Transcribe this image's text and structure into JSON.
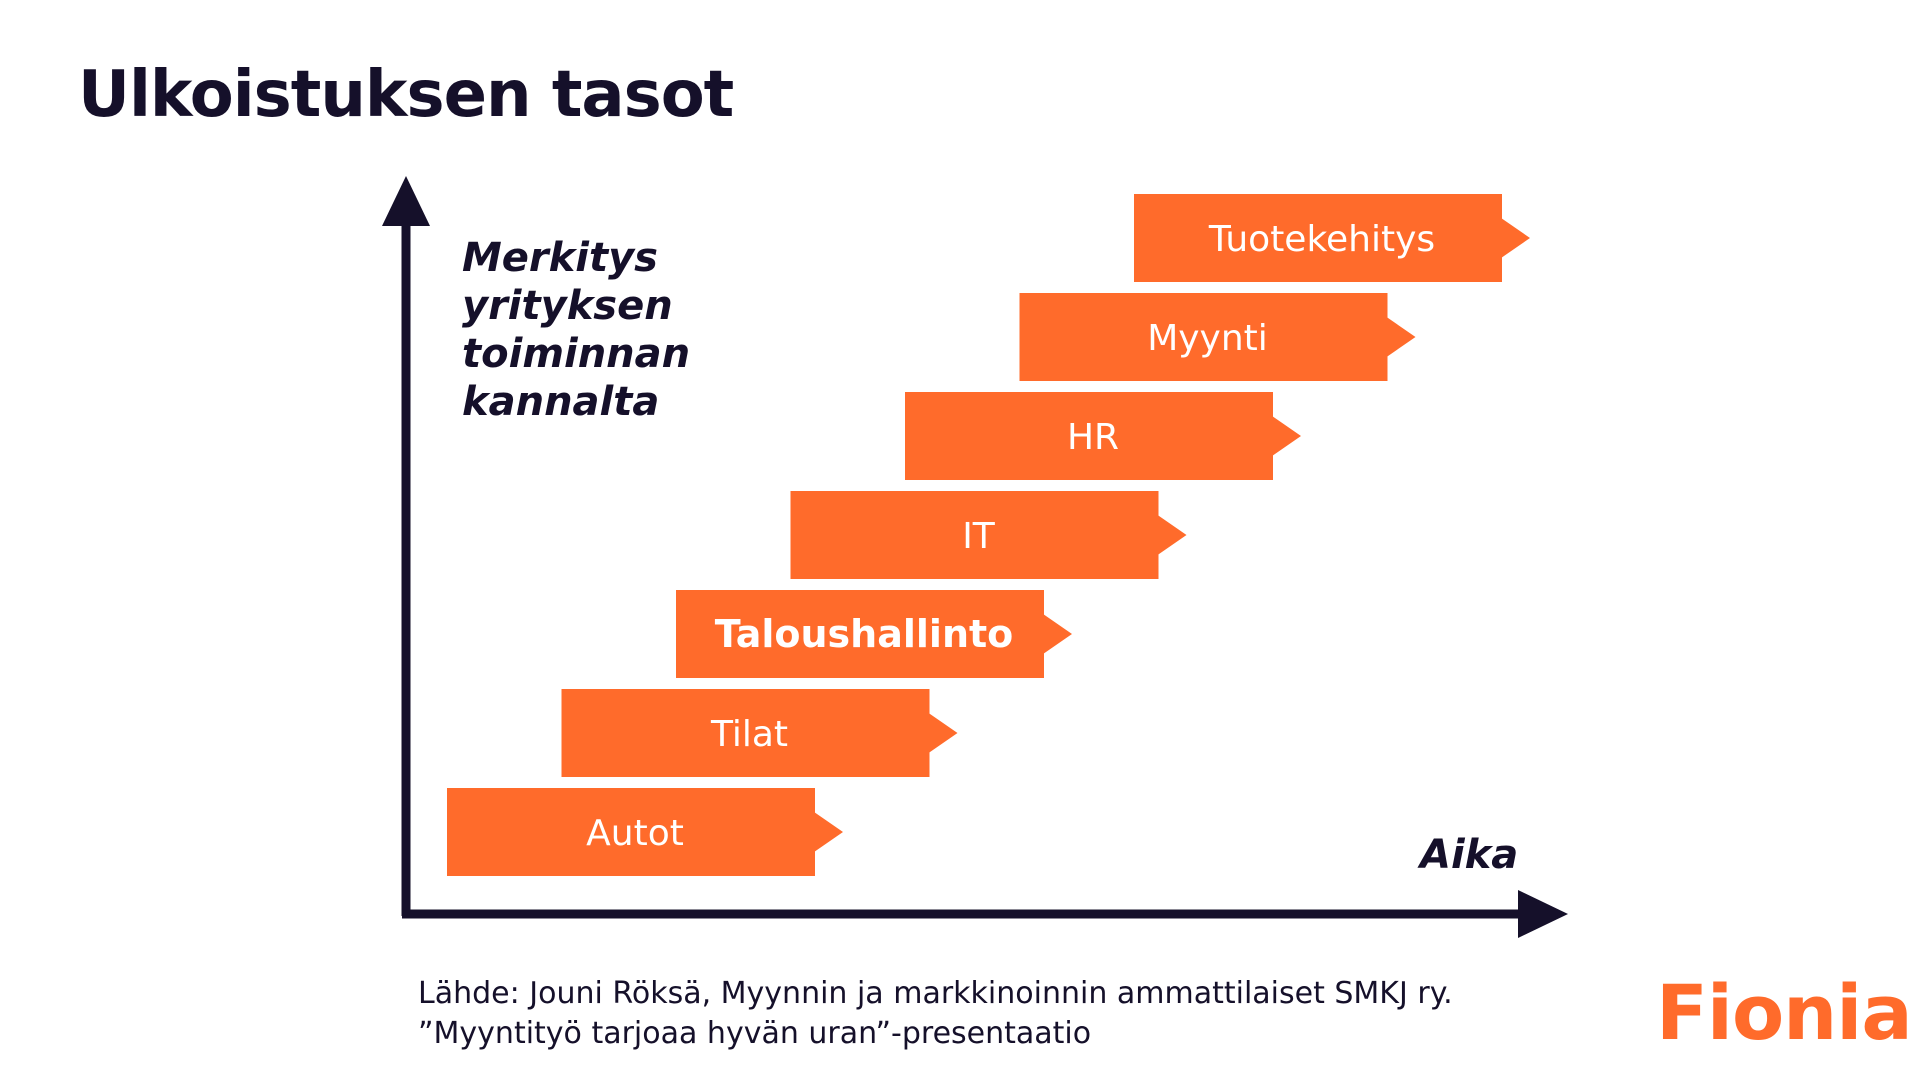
{
  "title": "Ulkoistuksen tasot",
  "y_axis_label": [
    "Merkitys",
    "yrityksen",
    "toiminnan",
    "kannalta"
  ],
  "x_axis_label": "Aika",
  "steps": [
    {
      "label": "Autot",
      "bold": false
    },
    {
      "label": "Tilat",
      "bold": false
    },
    {
      "label": "Taloushallinto",
      "bold": true
    },
    {
      "label": "IT",
      "bold": false
    },
    {
      "label": "HR",
      "bold": false
    },
    {
      "label": "Myynti",
      "bold": false
    },
    {
      "label": "Tuotekehitys",
      "bold": false
    }
  ],
  "source": [
    "Lähde: Jouni Röksä, Myynnin ja markkinoinnin ammattilaiset SMKJ ry.",
    "”Myyntityö tarjoaa hyvän uran”-presentaatio"
  ],
  "logo": "Fionia",
  "colors": {
    "accent": "#ff6b2b",
    "axis": "#15102a",
    "text": "#15102a"
  }
}
